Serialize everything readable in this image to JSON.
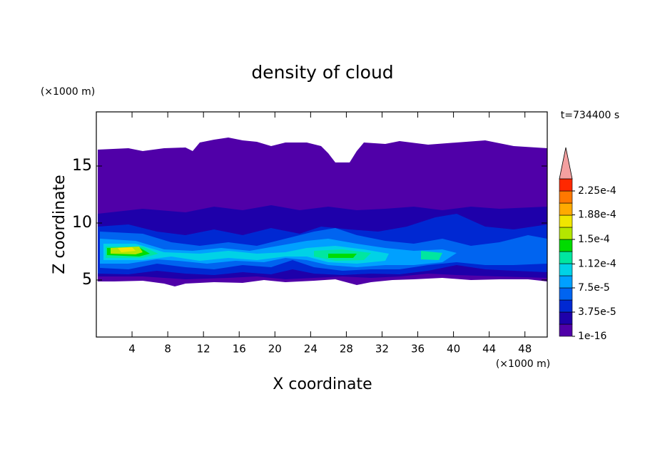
{
  "chart_data": {
    "type": "contour",
    "title": "density of cloud",
    "x_label": "X coordinate",
    "y_label": "Z coordinate",
    "x_unit_label": "(×1000 m)",
    "y_unit_label": "(×1000 m)",
    "annotation": "t=734400 s",
    "xlim": [
      0,
      50.5
    ],
    "ylim": [
      0,
      19.75
    ],
    "xticks": [
      4,
      8,
      12,
      16,
      20,
      24,
      28,
      32,
      36,
      40,
      44,
      48
    ],
    "yticks": [
      5,
      10,
      15
    ],
    "colorbar": {
      "levels": [
        1e-16,
        1.875e-05,
        3.75e-05,
        5.625e-05,
        7.5e-05,
        9.375e-05,
        0.0001125,
        0.00013125,
        0.00015,
        0.00016875,
        0.0001875,
        0.00020625,
        0.000225,
        0.00024375
      ],
      "colors": [
        "#5000a8",
        "#1e00aa",
        "#0028d2",
        "#0064f0",
        "#00a0ff",
        "#00d2e6",
        "#00e6a0",
        "#00dc00",
        "#b4e600",
        "#f0e600",
        "#ffaa00",
        "#ff7800",
        "#ff2800"
      ],
      "extend_color": "#f4a0a0",
      "ticks": [
        1e-16,
        {
          "value": 3.75e-05,
          "label": "3.75e-5"
        },
        {
          "value": 7.5e-05,
          "label": "7.5e-5"
        },
        {
          "value": 0.000112,
          "label": "1.12e-4"
        },
        {
          "value": 0.00015,
          "label": "1.5e-4"
        },
        {
          "value": 0.000188,
          "label": "1.88e-4"
        },
        {
          "value": 0.000225,
          "label": "2.25e-4"
        }
      ]
    }
  }
}
